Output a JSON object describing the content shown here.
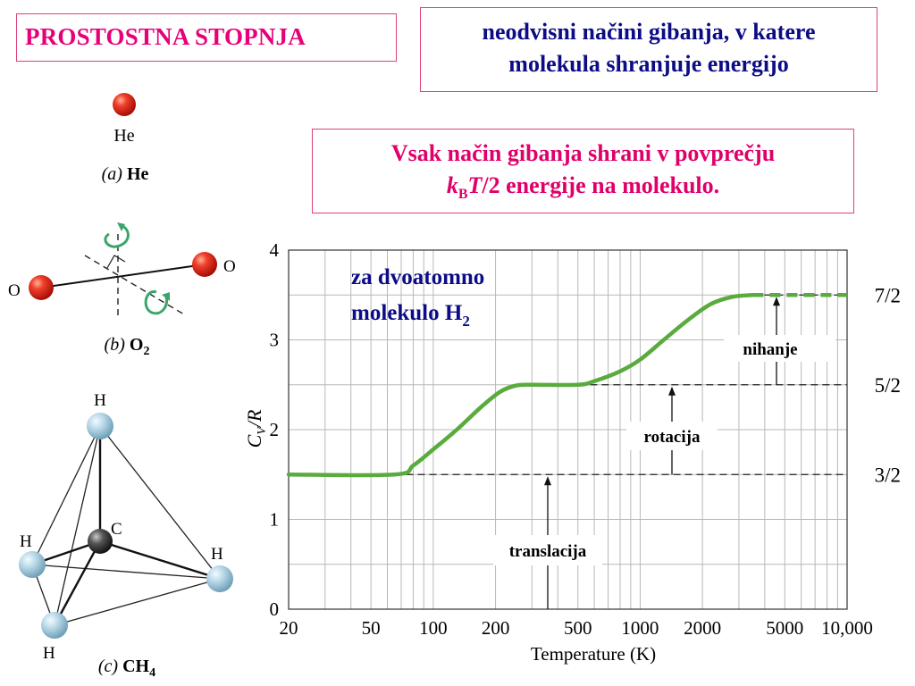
{
  "title": "PROSTOSTNA STOPNJA",
  "definition": [
    "neodvisni načini gibanja, v katere",
    "molekula shranjuje energijo"
  ],
  "equipartition": {
    "line1": "Vsak način gibanja shrani v povprečju",
    "k": "k",
    "k_sub": "B",
    "T": "T",
    "rest": "/2 energije na molekulo."
  },
  "molecules": {
    "he": {
      "atom_label": "He",
      "caption_letter": "(a)",
      "caption_name": "He"
    },
    "o2": {
      "atom_left": "O",
      "atom_right": "O",
      "caption_letter": "(b)",
      "caption_name": "O",
      "caption_sub": "2"
    },
    "ch4": {
      "top": "H",
      "center": "C",
      "left": "H",
      "right": "H",
      "bottom": "H",
      "caption_letter": "(c)",
      "caption_name": "CH",
      "caption_sub": "4"
    }
  },
  "colors": {
    "title": "#e8007a",
    "definition": "#0c0c86",
    "curve": "#5aab3e",
    "atom_red": "#e8231b",
    "atom_h": "#a9cfe0"
  },
  "chart_data": {
    "type": "line",
    "xlabel": "Temperature (K)",
    "ylabel_main": "C",
    "ylabel_sub": "V",
    "ylabel_rest": "/R",
    "x_scale": "log",
    "xlim": [
      20,
      10000
    ],
    "ylim": [
      0,
      4
    ],
    "x_ticks": [
      "20",
      "50",
      "100",
      "200",
      "500",
      "1000",
      "2000",
      "5000",
      "10,000"
    ],
    "x_tick_values": [
      20,
      50,
      100,
      200,
      500,
      1000,
      2000,
      5000,
      10000
    ],
    "y_ticks": [
      "0",
      "1",
      "2",
      "3",
      "4"
    ],
    "y_tick_values": [
      0,
      1,
      2,
      3,
      4
    ],
    "grid": true,
    "series": [
      {
        "x": [
          20,
          65,
          80,
          100,
          130,
          170,
          210,
          250,
          300,
          500,
          600,
          800,
          1000,
          1300,
          1700,
          2200,
          2800,
          3500
        ],
        "y": [
          1.5,
          1.5,
          1.6,
          1.78,
          2.0,
          2.25,
          2.42,
          2.49,
          2.5,
          2.5,
          2.54,
          2.65,
          2.78,
          3.0,
          3.22,
          3.4,
          3.48,
          3.5
        ]
      }
    ],
    "extrapolated": {
      "x": [
        3500,
        10000
      ],
      "y": [
        3.5,
        3.5
      ]
    },
    "levels": [
      {
        "label": "3/2",
        "value": 1.5,
        "from": 65
      },
      {
        "label": "5/2",
        "value": 2.5,
        "from": 300
      },
      {
        "label": "7/2",
        "value": 3.5,
        "from": 3500
      }
    ],
    "annotations": {
      "molecule_line1": "za dvoatomno",
      "molecule_line2": "molekulo H",
      "molecule_sub": "2",
      "translation": "translacija",
      "rotation": "rotacija",
      "vibration": "nihanje"
    }
  }
}
